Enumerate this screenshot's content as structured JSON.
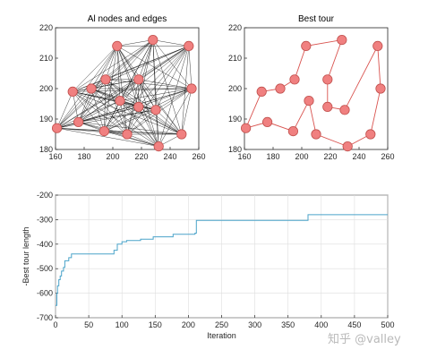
{
  "watermark": "知乎 @valley",
  "chart_data": [
    {
      "type": "scatter",
      "title": "Al nodes and edges",
      "xlabel": "",
      "ylabel": "",
      "xlim": [
        160,
        260
      ],
      "ylim": [
        180,
        220
      ],
      "xticks": [
        160,
        180,
        200,
        220,
        240,
        260
      ],
      "yticks": [
        180,
        190,
        200,
        210,
        220
      ],
      "edges": "complete-graph",
      "node_color": "#f08080",
      "edge_color": "#000000",
      "points": [
        {
          "x": 161,
          "y": 187
        },
        {
          "x": 172,
          "y": 199
        },
        {
          "x": 176,
          "y": 189
        },
        {
          "x": 185,
          "y": 200
        },
        {
          "x": 194,
          "y": 186
        },
        {
          "x": 195,
          "y": 203
        },
        {
          "x": 203,
          "y": 214
        },
        {
          "x": 205,
          "y": 196
        },
        {
          "x": 210,
          "y": 185
        },
        {
          "x": 218,
          "y": 203
        },
        {
          "x": 218,
          "y": 194
        },
        {
          "x": 228,
          "y": 216
        },
        {
          "x": 230,
          "y": 193
        },
        {
          "x": 232,
          "y": 181
        },
        {
          "x": 248,
          "y": 185
        },
        {
          "x": 253,
          "y": 214
        },
        {
          "x": 255,
          "y": 200
        }
      ]
    },
    {
      "type": "line",
      "title": "Best tour",
      "xlabel": "",
      "ylabel": "",
      "xlim": [
        160,
        260
      ],
      "ylim": [
        180,
        220
      ],
      "xticks": [
        160,
        180,
        200,
        220,
        240,
        260
      ],
      "yticks": [
        180,
        190,
        200,
        210,
        220
      ],
      "color": "#d9534f",
      "node_color": "#f08080",
      "points": [
        {
          "x": 161,
          "y": 187
        },
        {
          "x": 176,
          "y": 189
        },
        {
          "x": 194,
          "y": 186
        },
        {
          "x": 205,
          "y": 196
        },
        {
          "x": 210,
          "y": 185
        },
        {
          "x": 232,
          "y": 181
        },
        {
          "x": 248,
          "y": 185
        },
        {
          "x": 255,
          "y": 200
        },
        {
          "x": 253,
          "y": 214
        },
        {
          "x": 230,
          "y": 193
        },
        {
          "x": 218,
          "y": 194
        },
        {
          "x": 218,
          "y": 203
        },
        {
          "x": 228,
          "y": 216
        },
        {
          "x": 203,
          "y": 214
        },
        {
          "x": 195,
          "y": 203
        },
        {
          "x": 185,
          "y": 200
        },
        {
          "x": 172,
          "y": 199
        },
        {
          "x": 161,
          "y": 187
        }
      ]
    },
    {
      "type": "line",
      "title": "",
      "xlabel": "Iteration",
      "ylabel": "-Best tour length",
      "xlim": [
        0,
        500
      ],
      "ylim": [
        -700,
        -200
      ],
      "xticks": [
        0,
        50,
        100,
        150,
        200,
        250,
        300,
        350,
        400,
        450,
        500
      ],
      "yticks": [
        -700,
        -600,
        -500,
        -400,
        -300,
        -200
      ],
      "grid": true,
      "color": "#4aa3c9",
      "step": true,
      "points": [
        {
          "x": 0,
          "y": -650
        },
        {
          "x": 2,
          "y": -600
        },
        {
          "x": 3,
          "y": -570
        },
        {
          "x": 5,
          "y": -545
        },
        {
          "x": 7,
          "y": -530
        },
        {
          "x": 9,
          "y": -510
        },
        {
          "x": 12,
          "y": -495
        },
        {
          "x": 14,
          "y": -468
        },
        {
          "x": 20,
          "y": -455
        },
        {
          "x": 24,
          "y": -440
        },
        {
          "x": 88,
          "y": -425
        },
        {
          "x": 93,
          "y": -400
        },
        {
          "x": 100,
          "y": -390
        },
        {
          "x": 107,
          "y": -385
        },
        {
          "x": 124,
          "y": -385
        },
        {
          "x": 128,
          "y": -380
        },
        {
          "x": 147,
          "y": -370
        },
        {
          "x": 177,
          "y": -360
        },
        {
          "x": 210,
          "y": -355
        },
        {
          "x": 212,
          "y": -303
        },
        {
          "x": 378,
          "y": -303
        },
        {
          "x": 380,
          "y": -280
        },
        {
          "x": 500,
          "y": -280
        }
      ]
    }
  ]
}
